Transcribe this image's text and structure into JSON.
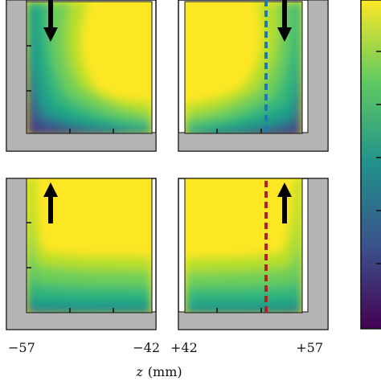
{
  "chart_data": {
    "type": "heatmap",
    "colormap": "viridis",
    "xlabel_var": "z",
    "xlabel_unit": "(mm)",
    "panel_tick_labels": {
      "left": [
        "−57",
        "−42"
      ],
      "right": [
        "+42",
        "+57"
      ]
    },
    "panels": [
      {
        "row": "top",
        "side": "left",
        "flow_direction": "down"
      },
      {
        "row": "top",
        "side": "right",
        "flow_direction": "down",
        "dashed_line_color": "#1f77b4"
      },
      {
        "row": "bottom",
        "side": "left",
        "flow_direction": "up"
      },
      {
        "row": "bottom",
        "side": "right",
        "flow_direction": "up",
        "dashed_line_color": "#b22222"
      }
    ],
    "colors": {
      "wall": "#b4b4b4",
      "arrow": "#000000",
      "viridis_low": "#440154",
      "viridis_high": "#fde725"
    }
  }
}
